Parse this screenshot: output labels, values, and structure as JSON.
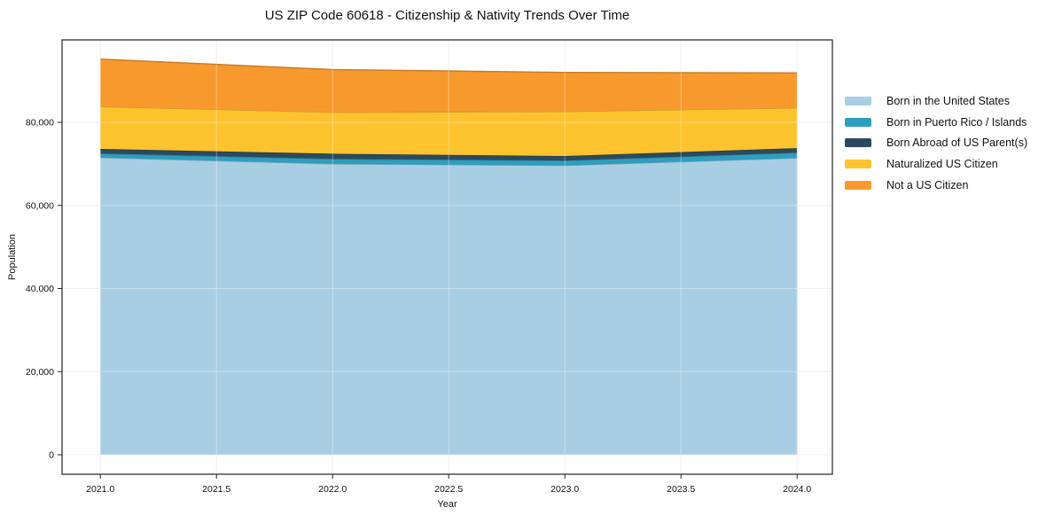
{
  "chart_data": {
    "type": "area",
    "stacked": true,
    "title": "US ZIP Code 60618 - Citizenship & Nativity Trends Over Time",
    "xlabel": "Year",
    "ylabel": "Population",
    "x": [
      2021,
      2022,
      2023,
      2024
    ],
    "series": [
      {
        "name": "Born in the United States",
        "color": "#a8cee4",
        "values": [
          71500,
          70000,
          69600,
          71400
        ]
      },
      {
        "name": "Born in Puerto Rico / Islands",
        "color": "#2e9ebd",
        "values": [
          1000,
          1200,
          1200,
          1300
        ]
      },
      {
        "name": "Born Abroad of US Parent(s)",
        "color": "#2c4a5e",
        "values": [
          1100,
          1250,
          1100,
          1100
        ]
      },
      {
        "name": "Naturalized US Citizen",
        "color": "#fdc32f",
        "values": [
          10200,
          9950,
          10700,
          9700
        ]
      },
      {
        "name": "Not a US Citizen",
        "color": "#f8992e",
        "values": [
          11400,
          10300,
          9400,
          8400
        ]
      }
    ],
    "x_ticks": [
      2021.0,
      2021.5,
      2022.0,
      2022.5,
      2023.0,
      2023.5,
      2024.0
    ],
    "x_tick_labels": [
      "2021.0",
      "2021.5",
      "2022.0",
      "2022.5",
      "2023.0",
      "2023.5",
      "2024.0"
    ],
    "y_ticks": [
      0,
      20000,
      40000,
      60000,
      80000
    ],
    "y_tick_labels": [
      "0",
      "20,000",
      "40,000",
      "60,000",
      "80,000"
    ],
    "xlim": [
      2020.835,
      2024.152
    ],
    "ylim": [
      -4700,
      99840
    ],
    "grid": true,
    "legend_position": "right-outside"
  }
}
